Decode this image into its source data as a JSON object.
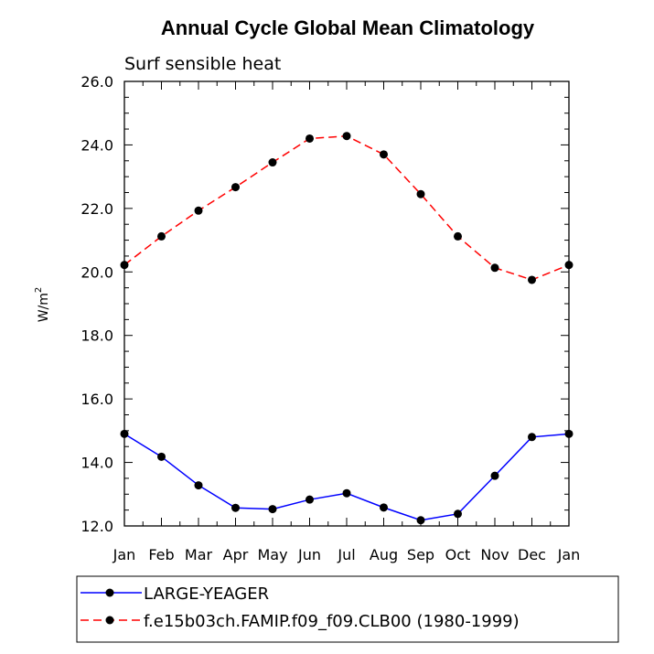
{
  "chart_data": {
    "type": "line",
    "title": "Annual Cycle Global Mean Climatology",
    "subtitle": "Surf sensible heat",
    "xlabel": "",
    "ylabel": "W/m",
    "ylabel_superscript": "2",
    "categories": [
      "Jan",
      "Feb",
      "Mar",
      "Apr",
      "May",
      "Jun",
      "Jul",
      "Aug",
      "Sep",
      "Oct",
      "Nov",
      "Dec",
      "Jan"
    ],
    "ylim": [
      12.0,
      26.0
    ],
    "yticks": [
      "12.0",
      "14.0",
      "16.0",
      "18.0",
      "20.0",
      "22.0",
      "24.0",
      "26.0"
    ],
    "grid": false,
    "legend_position": "bottom",
    "series": [
      {
        "name": "LARGE-YEAGER",
        "color": "#0000ff",
        "dash": "solid",
        "values": [
          14.9,
          14.18,
          13.28,
          12.57,
          12.53,
          12.83,
          13.03,
          12.58,
          12.18,
          12.38,
          13.58,
          14.8,
          14.9
        ]
      },
      {
        "name": "f.e15b03ch.FAMIP.f09_f09.CLB00 (1980-1999)",
        "color": "#ff0000",
        "dash": "dashed",
        "values": [
          20.22,
          21.12,
          21.93,
          22.67,
          23.45,
          24.2,
          24.28,
          23.7,
          22.45,
          21.12,
          20.13,
          19.75,
          20.22
        ]
      }
    ]
  }
}
